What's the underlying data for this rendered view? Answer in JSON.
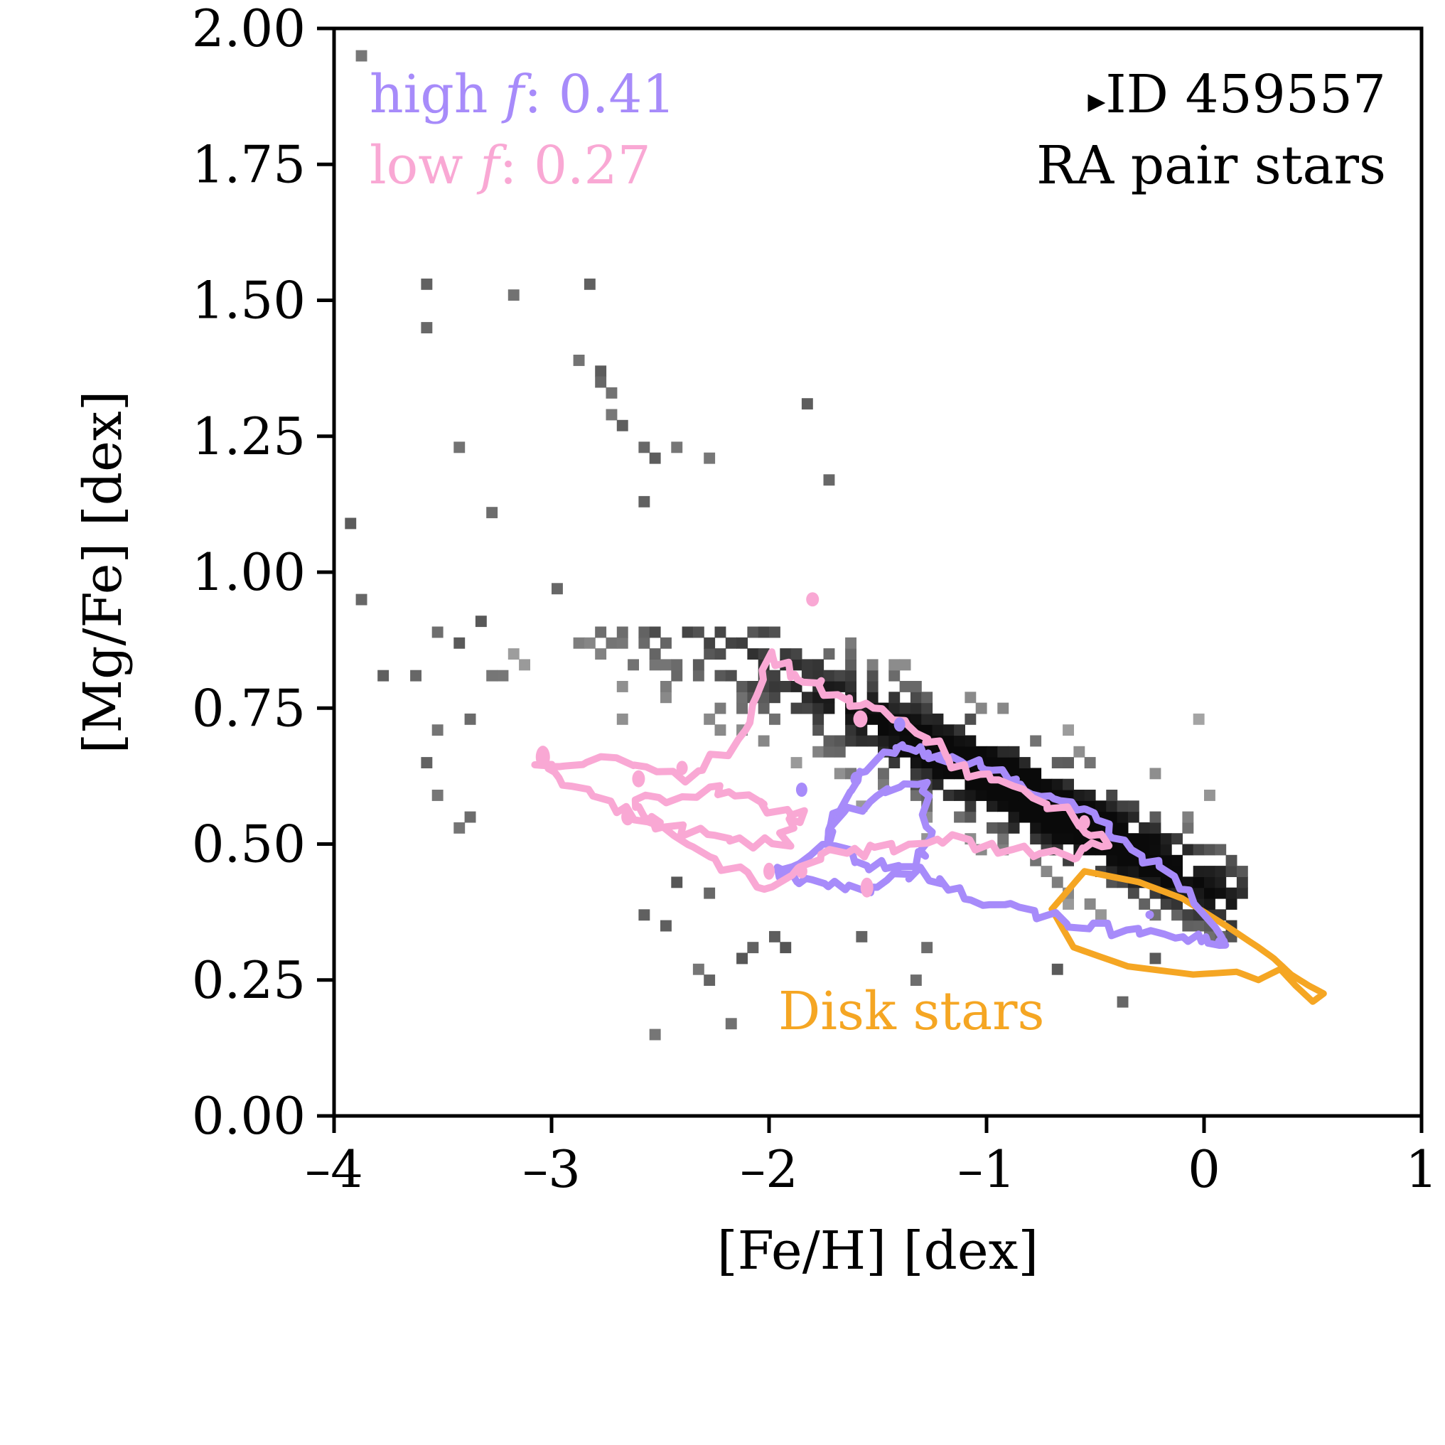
{
  "chart_data": {
    "type": "heatmap",
    "xlabel": "[Fe/H] [dex]",
    "ylabel": "[Mg/Fe] [dex]",
    "xlim": [
      -4,
      1
    ],
    "ylim": [
      0,
      2
    ],
    "xticks": [
      -4,
      -3,
      -2,
      -1,
      0,
      1
    ],
    "xtick_labels": [
      "–4",
      "–3",
      "–2",
      "–1",
      "0",
      "1"
    ],
    "yticks": [
      0,
      0.25,
      0.5,
      0.75,
      1.0,
      1.25,
      1.5,
      1.75,
      2.0
    ],
    "ytick_labels": [
      "0.00",
      "0.25",
      "0.50",
      "0.75",
      "1.00",
      "1.25",
      "1.50",
      "1.75",
      "2.00"
    ],
    "grid": false,
    "histogram": {
      "description": "2D density histogram of RA pair stars",
      "colormap": "greys",
      "bin_size": [
        0.05,
        0.02
      ],
      "sparse_points": [
        [
          -3.88,
          1.95
        ],
        [
          -3.6,
          1.53
        ],
        [
          -3.2,
          1.51
        ],
        [
          -2.85,
          1.53
        ],
        [
          -3.6,
          1.45
        ],
        [
          -2.8,
          1.37
        ],
        [
          -2.9,
          1.39
        ],
        [
          -2.8,
          1.35
        ],
        [
          -2.75,
          1.33
        ],
        [
          -2.75,
          1.29
        ],
        [
          -2.7,
          1.27
        ],
        [
          -2.6,
          1.23
        ],
        [
          -2.55,
          1.21
        ],
        [
          -2.45,
          1.23
        ],
        [
          -1.85,
          1.31
        ],
        [
          -3.45,
          1.23
        ],
        [
          -2.3,
          1.21
        ],
        [
          -1.75,
          1.17
        ],
        [
          -3.3,
          1.11
        ],
        [
          -2.6,
          1.13
        ],
        [
          -3.95,
          1.09
        ],
        [
          -3.9,
          0.95
        ],
        [
          -3.0,
          0.97
        ],
        [
          -3.35,
          0.91
        ],
        [
          -3.55,
          0.89
        ],
        [
          -3.45,
          0.87
        ],
        [
          -3.8,
          0.81
        ],
        [
          -3.65,
          0.81
        ],
        [
          -3.3,
          0.81
        ],
        [
          -3.25,
          0.81
        ],
        [
          -3.4,
          0.73
        ],
        [
          -3.55,
          0.71
        ],
        [
          -3.6,
          0.65
        ],
        [
          -3.55,
          0.59
        ],
        [
          -3.4,
          0.55
        ],
        [
          -3.45,
          0.53
        ],
        [
          -2.55,
          0.15
        ],
        [
          -2.2,
          0.17
        ],
        [
          -2.35,
          0.27
        ],
        [
          -2.3,
          0.25
        ],
        [
          -1.35,
          0.25
        ],
        [
          -0.4,
          0.21
        ],
        [
          -0.7,
          0.27
        ],
        [
          -2.45,
          0.43
        ],
        [
          -2.3,
          0.41
        ],
        [
          -2.6,
          0.37
        ],
        [
          -2.5,
          0.35
        ],
        [
          -2.0,
          0.33
        ],
        [
          -1.95,
          0.31
        ],
        [
          -2.1,
          0.31
        ],
        [
          -2.15,
          0.29
        ],
        [
          -1.6,
          0.33
        ],
        [
          -1.3,
          0.31
        ],
        [
          -0.25,
          0.29
        ]
      ],
      "dense_region": {
        "peak": [
          -0.75,
          0.45
        ],
        "extent_feh": [
          -3.2,
          0.2
        ],
        "extent_mgfe": [
          0.3,
          0.85
        ]
      }
    },
    "series": [
      {
        "name": "high f",
        "kind": "contour",
        "color": "#a78bfa"
      },
      {
        "name": "low f",
        "kind": "contour",
        "color": "#f9a8d4"
      },
      {
        "name": "Disk stars",
        "kind": "contour",
        "color": "#f5a623"
      }
    ]
  },
  "annotations": {
    "high_prefix": "high ",
    "high_italic": "f",
    "high_value": ": 0.41",
    "low_prefix": "low ",
    "low_italic": "f",
    "low_value": ": 0.27",
    "id_marker": "▸",
    "id_text": "ID 459557",
    "subset": "RA pair stars",
    "disk": "Disk stars"
  },
  "colors": {
    "high": "#a78bfa",
    "low": "#f9a8d4",
    "disk": "#f5a623",
    "axis": "#000000"
  }
}
